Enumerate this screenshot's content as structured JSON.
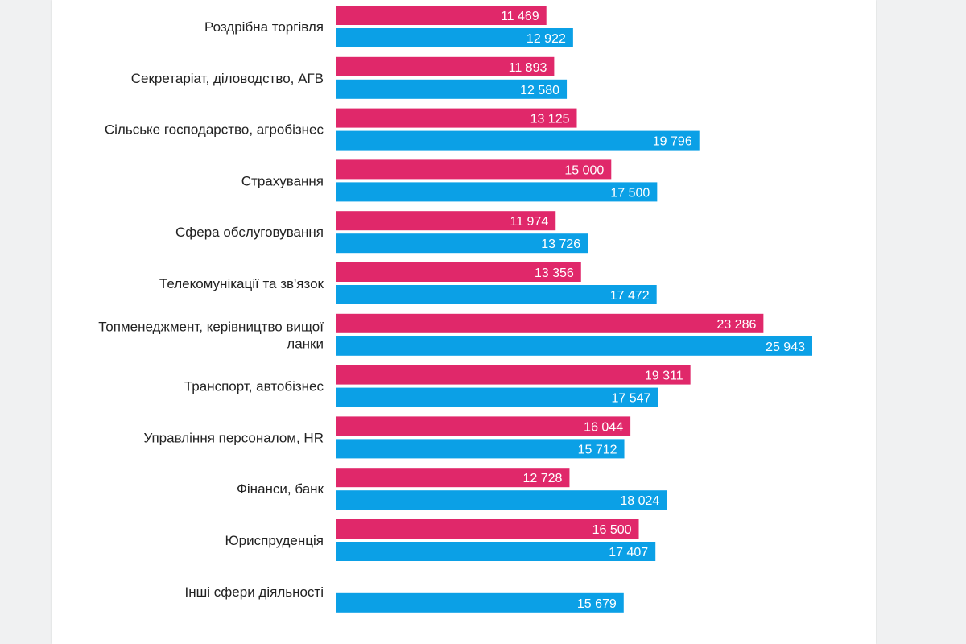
{
  "chart_data": {
    "type": "bar",
    "orientation": "horizontal",
    "categories": [
      [
        "Роздрібна торгівля"
      ],
      [
        "Секретаріат, діловодство, АГВ"
      ],
      [
        "Сільське господарство, агробізнес"
      ],
      [
        "Страхування"
      ],
      [
        "Сфера обслуговування"
      ],
      [
        "Телекомунікації та зв'язок"
      ],
      [
        "Топменеджмент, керівництво вищої",
        "ланки"
      ],
      [
        "Транспорт, автобізнес"
      ],
      [
        "Управління персоналом, HR"
      ],
      [
        "Фінанси, банк"
      ],
      [
        "Юриспруденція"
      ],
      [
        "Інші сфери діяльності"
      ]
    ],
    "series": [
      {
        "color": "#e0286a",
        "values": [
          11469,
          11893,
          13125,
          15000,
          11974,
          13356,
          23286,
          19311,
          16044,
          12728,
          16500,
          0
        ],
        "labels": [
          "11 469",
          "11 893",
          "13 125",
          "15 000",
          "11 974",
          "13 356",
          "23 286",
          "19 311",
          "16 044",
          "12 728",
          "16 500",
          ""
        ]
      },
      {
        "color": "#0ba0e6",
        "values": [
          12922,
          12580,
          19796,
          17500,
          13726,
          17472,
          25943,
          17547,
          15712,
          18024,
          17407,
          15679
        ],
        "labels": [
          "12 922",
          "12 580",
          "19 796",
          "17 500",
          "13 726",
          "17 472",
          "25 943",
          "17 547",
          "15 712",
          "18 024",
          "17 407",
          "15 679"
        ]
      }
    ],
    "xlim": [
      0,
      26000
    ],
    "axis_line": true,
    "grid": false,
    "legend": "none",
    "title": "",
    "xlabel": "",
    "ylabel": ""
  }
}
